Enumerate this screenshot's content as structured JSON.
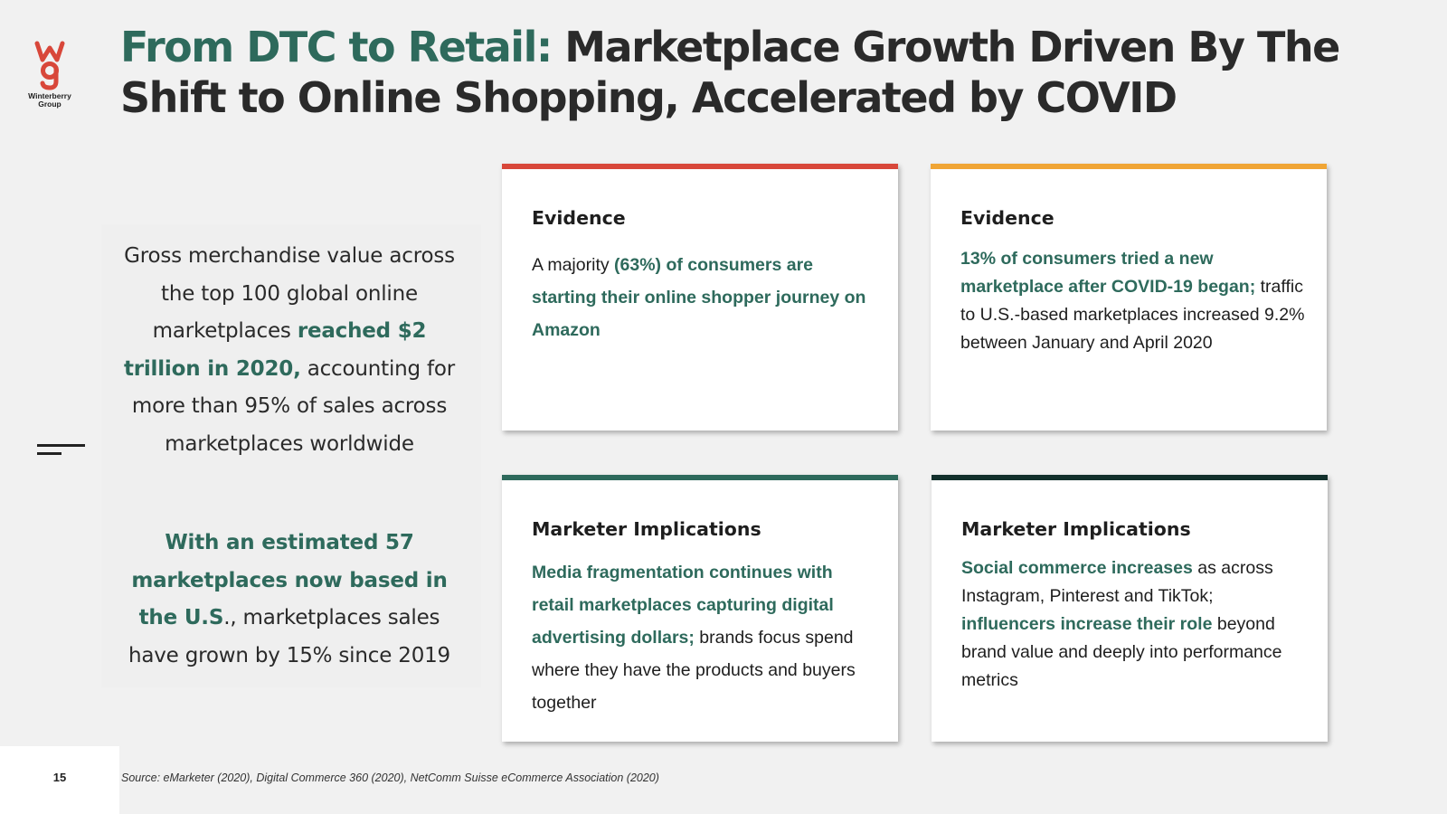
{
  "brand": {
    "logo_text_line1": "Winterberry",
    "logo_text_line2": "Group",
    "logo_color": "#d8473a"
  },
  "title": {
    "accent": "From DTC to Retail:",
    "main": " Marketplace Growth Driven By The Shift to Online Shopping, Accelerated by COVID",
    "accent_color": "#2e6a5c"
  },
  "left": {
    "p1_a": "Gross merchandise value across the top 100 global online marketplaces ",
    "p1_b": "reached $2 trillion in 2020,",
    "p1_c": " accounting for more than 95% of sales across marketplaces worldwide",
    "p2_a": "With an estimated 57 marketplaces now based in the U.S",
    "p2_b": "., marketplaces sales have grown by 15% since 2019"
  },
  "cards": [
    {
      "heading": "Evidence",
      "color": "#d8473a",
      "a": "A majority ",
      "b": "(63%) of consumers are starting their online shopper journey on Amazon",
      "c": ""
    },
    {
      "heading": "Evidence",
      "color": "#f0a535",
      "a": "",
      "b": "13% of consumers tried a new marketplace after COVID-19 began;",
      "c": " traffic to U.S.-based marketplaces increased 9.2% between January and April 2020"
    },
    {
      "heading": "Marketer Implications",
      "color": "#2e6a5c",
      "a": "",
      "b": "Media fragmentation continues with retail marketplaces capturing digital advertising dollars;",
      "c": " brands focus spend where they have the products and buyers together"
    },
    {
      "heading": "Marketer Implications",
      "color": "#12302c",
      "a": "",
      "b1": "Social commerce increases",
      "c1": " as across Instagram, Pinterest and TikTok; ",
      "b2": "influencers increase their role",
      "c2": " beyond brand value and deeply into performance metrics"
    }
  ],
  "footer": {
    "page_number": "15",
    "source": "Source: eMarketer (2020), Digital Commerce 360 (2020), NetComm Suisse eCommerce Association (2020)"
  },
  "icons": {
    "logo": "wg-logo-icon",
    "menu": "hamburger-menu-icon"
  }
}
